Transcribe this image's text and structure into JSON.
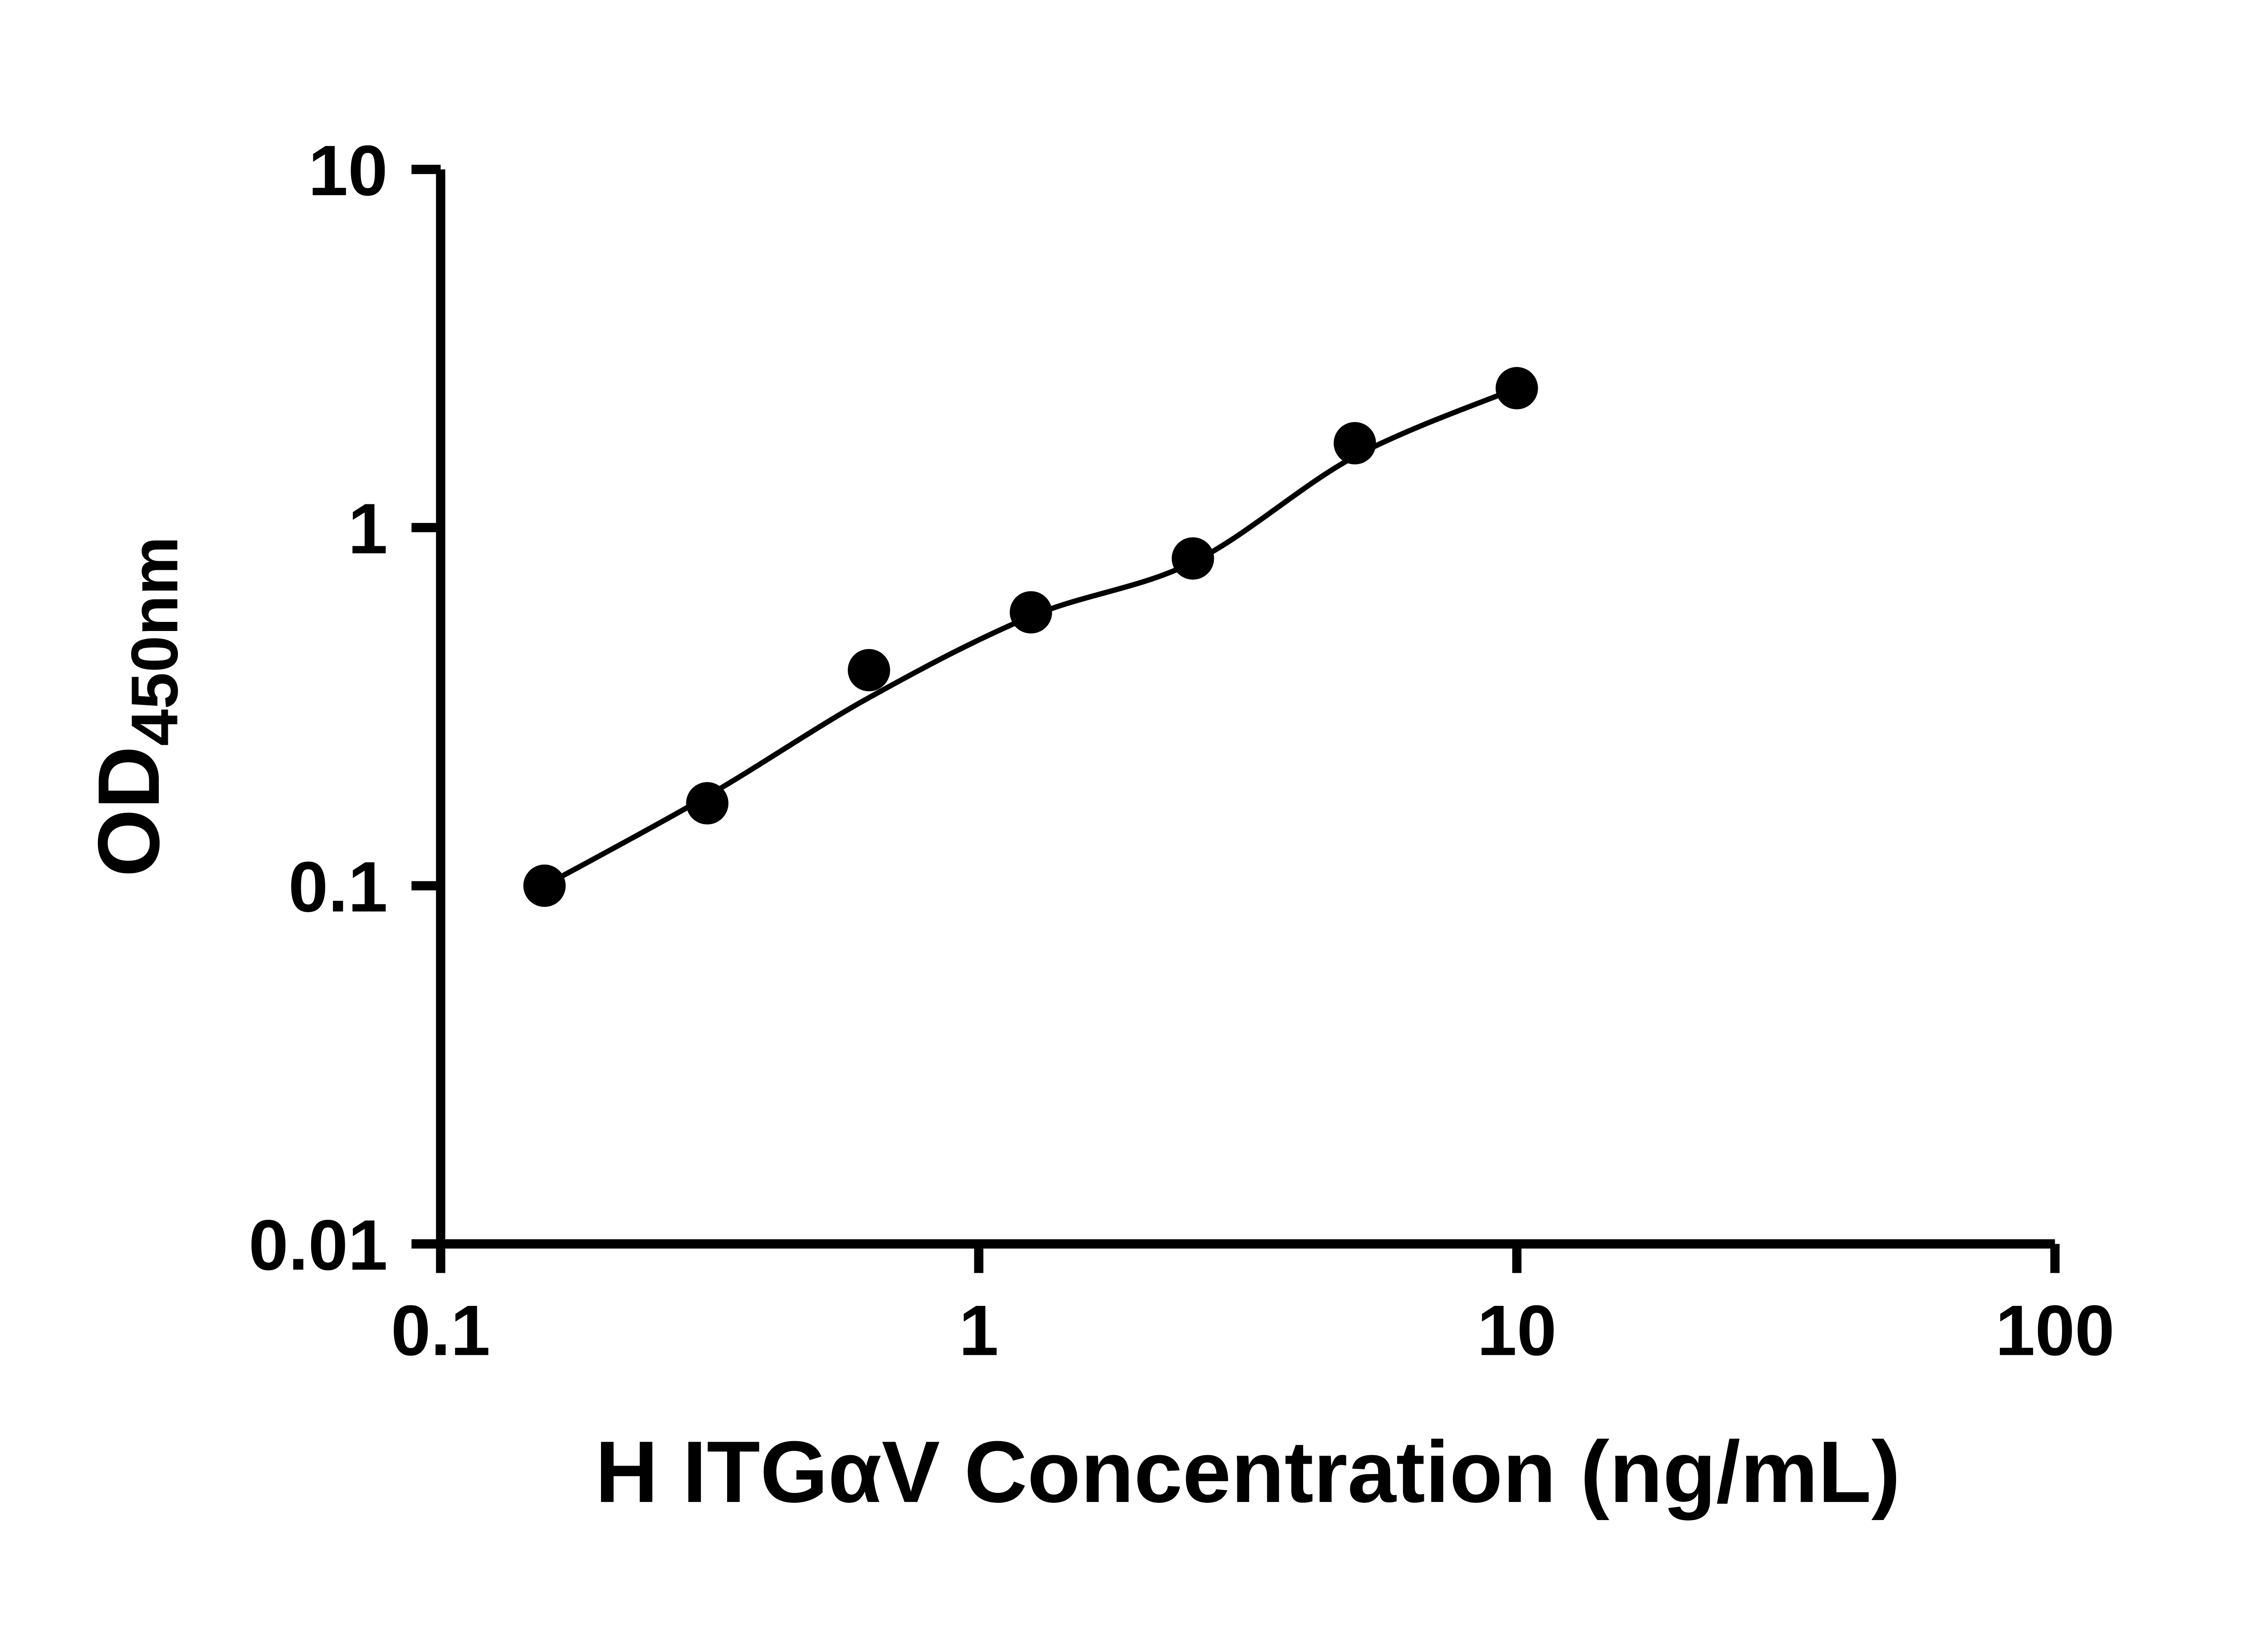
{
  "figure": {
    "background_color": "#ffffff",
    "foreground_color": "#000000"
  },
  "chart_data": {
    "type": "scatter",
    "title": "",
    "xlabel": "H ITGαV Concentration (ng/mL)",
    "ylabel_main": "OD",
    "ylabel_sub": "450nm",
    "x_scale": "log",
    "y_scale": "log",
    "xlim": [
      0.1,
      100
    ],
    "ylim": [
      0.01,
      10
    ],
    "grid": false,
    "legend": "none",
    "axis_color": "#000000",
    "marker_color": "#000000",
    "line_color": "#000000",
    "x_ticks": [
      {
        "value": 0.1,
        "label": "0.1"
      },
      {
        "value": 1,
        "label": "1"
      },
      {
        "value": 10,
        "label": "10"
      },
      {
        "value": 100,
        "label": "100"
      }
    ],
    "y_ticks": [
      {
        "value": 0.01,
        "label": "0.01"
      },
      {
        "value": 0.1,
        "label": "0.1"
      },
      {
        "value": 1,
        "label": "1"
      },
      {
        "value": 10,
        "label": "10"
      }
    ],
    "points": [
      {
        "x": 0.156,
        "y": 0.1
      },
      {
        "x": 0.313,
        "y": 0.17
      },
      {
        "x": 0.625,
        "y": 0.4
      },
      {
        "x": 1.25,
        "y": 0.58
      },
      {
        "x": 2.5,
        "y": 0.82
      },
      {
        "x": 5,
        "y": 1.72
      },
      {
        "x": 10,
        "y": 2.45
      }
    ],
    "fit_curve": [
      {
        "x": 0.156,
        "y": 0.1
      },
      {
        "x": 0.313,
        "y": 0.178
      },
      {
        "x": 0.625,
        "y": 0.335
      },
      {
        "x": 1.25,
        "y": 0.565
      },
      {
        "x": 2.5,
        "y": 0.8
      },
      {
        "x": 5,
        "y": 1.58
      },
      {
        "x": 10,
        "y": 2.45
      }
    ]
  }
}
